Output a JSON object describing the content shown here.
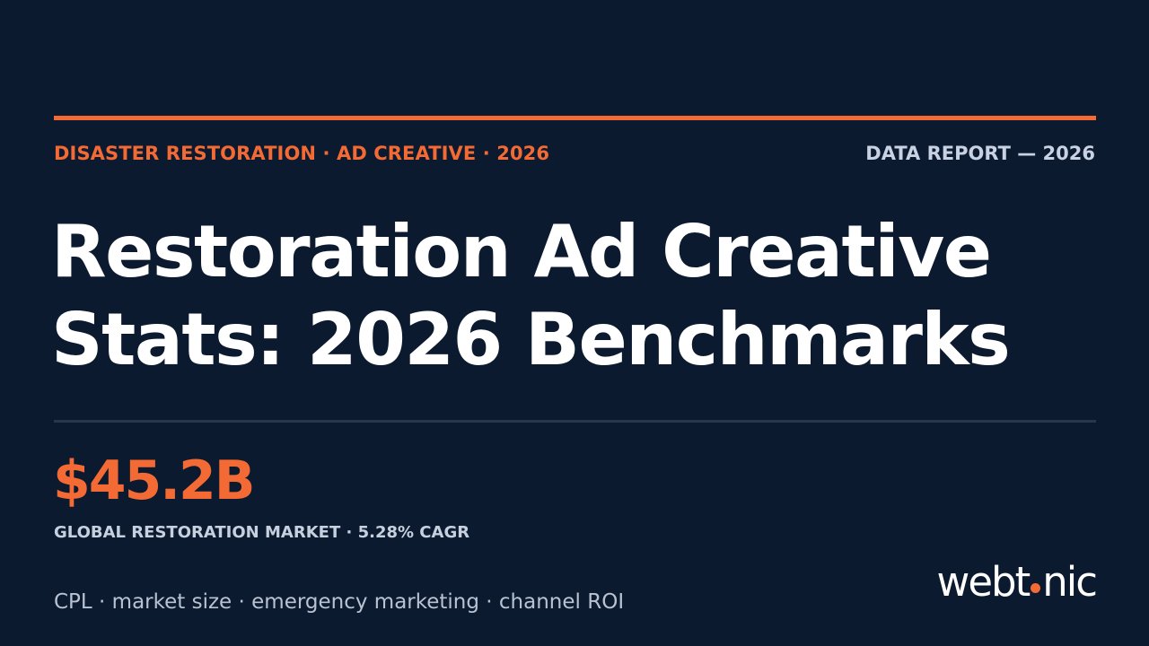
{
  "header": {
    "category": "DISASTER RESTORATION · AD CREATIVE · 2026",
    "report_label": "DATA REPORT — 2026"
  },
  "title": {
    "line1": "Restoration Ad Creative",
    "line2": "Stats: 2026 Benchmarks"
  },
  "stat": {
    "value": "$45.2B",
    "label": "GLOBAL RESTORATION MARKET · 5.28% CAGR"
  },
  "tags": "CPL · market size · emergency marketing · channel ROI",
  "brand": {
    "logo_text": "webtonic",
    "logo_before_dot": "webt",
    "logo_after_dot": "nic",
    "accent_color": "#f46a34",
    "background_color": "#0c1a30"
  }
}
